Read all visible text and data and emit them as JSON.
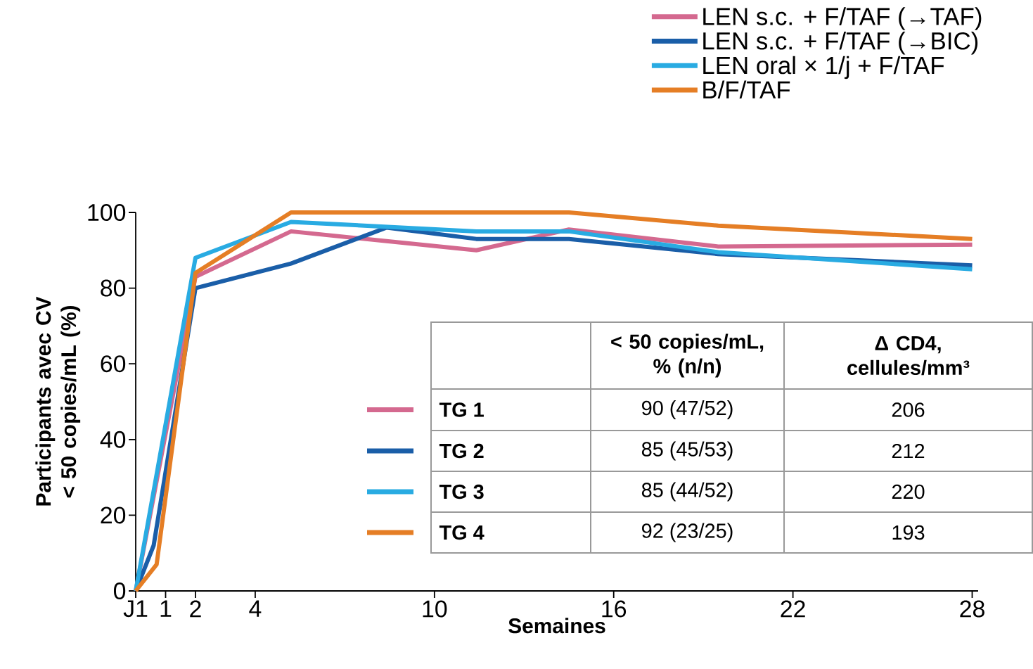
{
  "chart_data": {
    "type": "line",
    "xlabel": "Semaines",
    "ylabel": "Participants avec CV < 50 copies/mL (%)",
    "xlim": [
      0,
      28.2
    ],
    "ylim": [
      0,
      100
    ],
    "xticks": [
      {
        "value": 0,
        "label": "J1"
      },
      1,
      2,
      4,
      10,
      16,
      22,
      28
    ],
    "yticks": [
      0,
      20,
      40,
      60,
      80,
      100
    ],
    "legend": "top right",
    "line_style": "solid",
    "series": [
      {
        "name": "LEN s.c. + F/TAF (→TAF)",
        "color": "#d4698f",
        "x": [
          0,
          2,
          5.2,
          11.4,
          14.5,
          19.5,
          28
        ],
        "values": [
          0,
          83,
          95,
          90,
          95.5,
          91,
          91.5
        ]
      },
      {
        "name": "LEN s.c. + F/TAF (→BIC)",
        "color": "#1a5ea8",
        "x": [
          0,
          0.6,
          2,
          5.2,
          8.4,
          11.4,
          14.5,
          19.5,
          28
        ],
        "values": [
          0,
          12,
          80,
          86.5,
          96,
          93,
          93,
          89,
          86
        ]
      },
      {
        "name": "LEN oral × 1/j + F/TAF",
        "color": "#29abe2",
        "x": [
          0,
          2,
          5.2,
          11.4,
          14.5,
          19.5,
          28
        ],
        "values": [
          0,
          88,
          97.5,
          95,
          95,
          89.5,
          85
        ]
      },
      {
        "name": "B/F/TAF",
        "color": "#e57e25",
        "x": [
          0,
          0.7,
          2,
          5.2,
          14.5,
          19.5,
          28
        ],
        "values": [
          0,
          7,
          84,
          100,
          100,
          96.5,
          93
        ]
      }
    ],
    "annotations": [
      "< 50 copies/mL, % (n/n)",
      "Δ CD4, cellules/mm³",
      "TG 1",
      "90 (47/52)",
      "206",
      "TG 2",
      "85 (45/53)",
      "212",
      "TG 3",
      "85 (44/52)",
      "220",
      "TG 4",
      "92 (23/25)",
      "193"
    ]
  }
}
